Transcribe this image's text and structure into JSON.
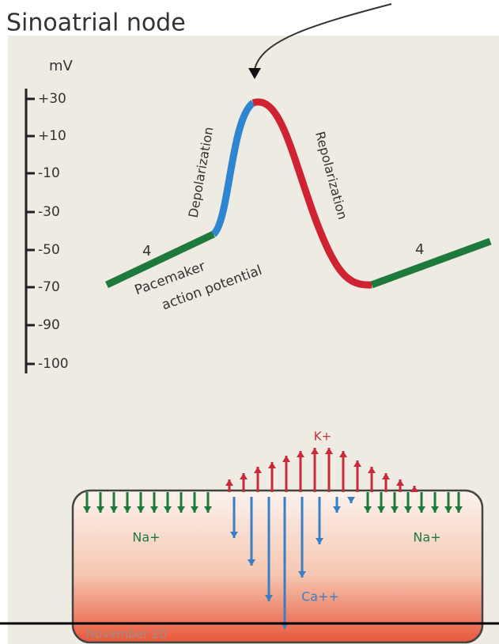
{
  "header": {
    "title": "Sinoatrial node"
  },
  "axis": {
    "unit": "mV",
    "ticks": [
      "+30",
      "+10",
      "-10",
      "-30",
      "-50",
      "-70",
      "-90",
      "-100"
    ]
  },
  "curve": {
    "phase_left": "4",
    "phase_right": "4",
    "depolarization": "Depolarization",
    "repolarization": "Repolarization",
    "caption_line1": "Pacemaker",
    "caption_line2": "action potential"
  },
  "cell": {
    "potassium": "K+",
    "sodium_left": "Na+",
    "sodium_right": "Na+",
    "calcium": "Ca++"
  },
  "footer": {
    "date": "November 20"
  }
}
